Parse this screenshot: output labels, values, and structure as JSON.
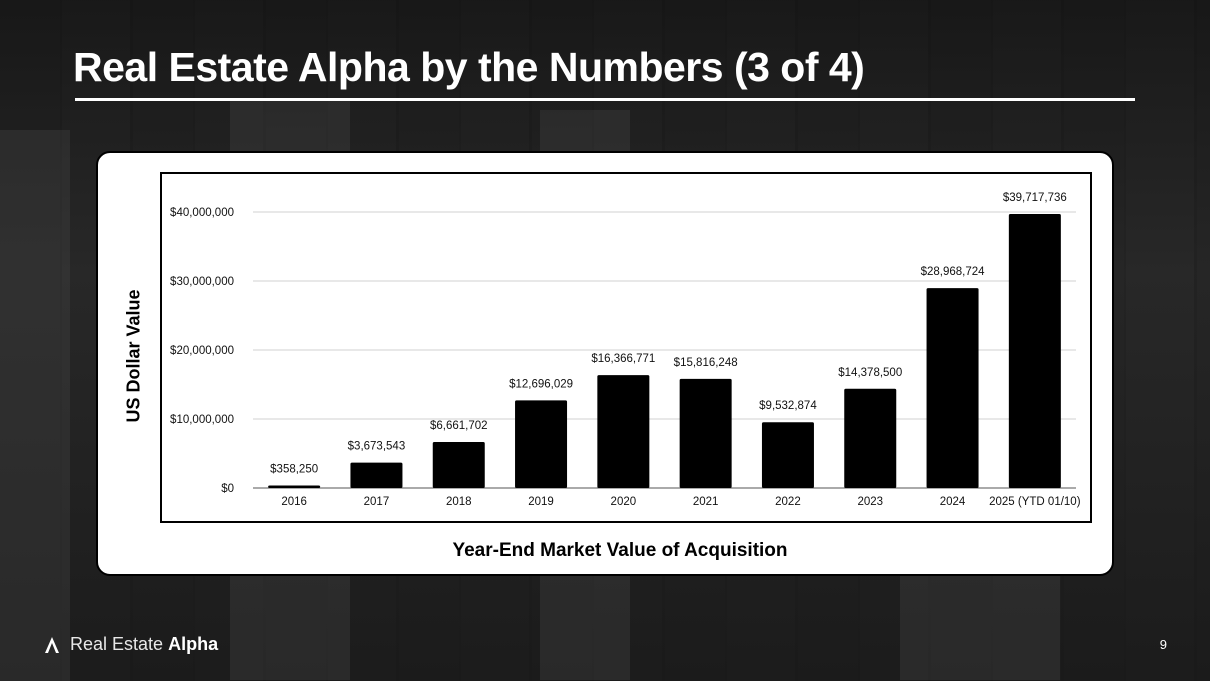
{
  "slide": {
    "title": "Real Estate Alpha by the Numbers (3 of 4)",
    "page_number": "9",
    "logo": {
      "light_text": "Real Estate",
      "bold_text": "Alpha"
    }
  },
  "chart_data": {
    "type": "bar",
    "title": "",
    "xlabel": "Year-End Market Value of Acquisition",
    "ylabel": "US Dollar Value",
    "categories": [
      "2016",
      "2017",
      "2018",
      "2019",
      "2020",
      "2021",
      "2022",
      "2023",
      "2024",
      "2025 (YTD 01/10)"
    ],
    "values": [
      358250,
      3673543,
      6661702,
      12696029,
      16366771,
      15816248,
      9532874,
      14378500,
      28968724,
      39717736
    ],
    "data_labels": [
      "$358,250",
      "$3,673,543",
      "$6,661,702",
      "$12,696,029",
      "$16,366,771",
      "$15,816,248",
      "$9,532,874",
      "$14,378,500",
      "$28,968,724",
      "$39,717,736"
    ],
    "yticks": [
      0,
      10000000,
      20000000,
      30000000,
      40000000
    ],
    "ytick_labels": [
      "$0",
      "$10,000,000",
      "$20,000,000",
      "$30,000,000",
      "$40,000,000"
    ],
    "ylim": [
      0,
      44000000
    ],
    "grid": true,
    "bar_color": "#000000"
  }
}
